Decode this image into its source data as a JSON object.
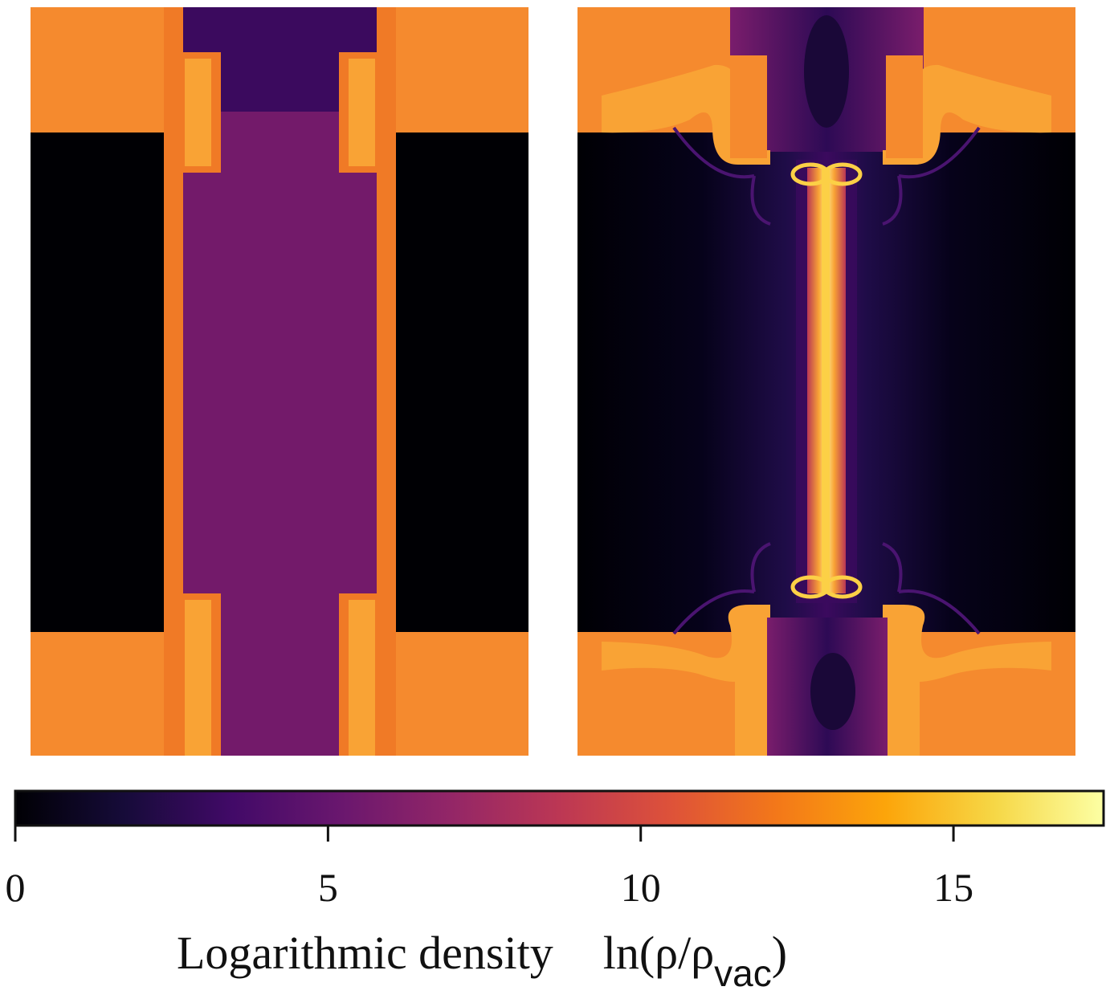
{
  "chart_data": {
    "type": "heatmap",
    "panels": [
      {
        "id": "left",
        "description_visible": false
      },
      {
        "id": "right",
        "description_visible": false
      }
    ],
    "colorbar": {
      "colormap": "inferno",
      "range": [
        0,
        17.4
      ],
      "ticks": [
        0,
        5,
        10,
        15
      ],
      "tick_labels": [
        "0",
        "5",
        "10",
        "15"
      ],
      "label_text": "Logarithmic density",
      "label_math": "ln(ρ/ρ",
      "label_sub": "vac",
      "label_close": ")"
    }
  },
  "colors": {
    "vacuum": "#000004",
    "plasma_low": "#3b0a5e",
    "plasma_mid": "#731a6a",
    "wall_orange": "#f58a2e",
    "wall_dark_orange": "#f07a26",
    "wall_light": "#f9a335",
    "bright_yellow": "#fcd046"
  }
}
